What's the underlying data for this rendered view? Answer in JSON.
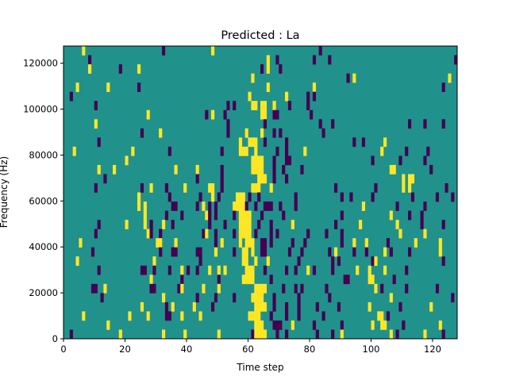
{
  "chart_data": {
    "type": "heatmap",
    "title": "Predicted : La",
    "xlabel": "Time step",
    "ylabel": "Frequency (Hz)",
    "xlim": [
      0,
      128
    ],
    "ylim": [
      0,
      127500
    ],
    "xticks": [
      "0",
      "20",
      "40",
      "60",
      "80",
      "100",
      "120"
    ],
    "xtick_values": [
      0,
      20,
      40,
      60,
      80,
      100,
      120
    ],
    "yticks": [
      "0",
      "20000",
      "40000",
      "60000",
      "80000",
      "100000",
      "120000"
    ],
    "ytick_values": [
      0,
      20000,
      40000,
      60000,
      80000,
      100000,
      120000
    ],
    "n_cols": 128,
    "n_rows": 32,
    "value_legend": {
      ".": "background (mid)",
      "p": "low",
      "y": "high"
    },
    "colors": {
      ".": "#21918c",
      "p": "#440154",
      "y": "#fde725"
    },
    "rows_top_to_bottom": [
      "......y.........................p...............y..................................p...............................................",
      "........p.........................................................y..p...........p....p........................................p...",
      "........y.........p.....y.......................................p.y...p..............................................................",
      ".............................................................y..............................p.y..............................y.......",
      "....y.........y.........p.........................................y..............y.........................................p.......",
      "..p.........................................................y...........y......p.p.....................................................",
      "..........p..........................................p.p.....yy.yy..y....p.....p.......................................................",
      "...........................y..................p.y...p...........yy..pp..........p.......................................................",
      "..........y..........................................p...........p.................p...p........................p....p.....p............",
      ".........................p.....y.....................p.....y....y...p.p.............p................................................",
      "...........p.............................................y..yyy..p......p.....................p..p......y.........................p....",
      "...y..................y...........p................p.....yyy..y......p..p.....y........................y.......p......p..........",
      "....................y........................................yyyy...p...pp..........................p........p.......p...................",
      "...........y....y...................y......y.......p.........yyyy...p..p.....p............................yy...........p...........y.",
      ".............p.............................p.......p...........yyy..p...p.....................................y.yy......................p",
      "..........p..............p..y....p.....y.......yy..p.........yyy...y....................p............p........y.y...........p.........",
      "........................y.........p.........p...y.p.....yyy.p..p...........p..............p..p......p............p.......p....p....",
      "........................y.y........pp......p.y.p.p.....yyyyp..p..ppp..p....p.....................y..........p........p...............",
      "..........................y......p....p.......yp.p.....p.yyyy...p......p..................p...............y.....p...p...................",
      "...........p........y.....y.p...y..p...........p....p....yyyy..p...p......y.............p.......y...........y.......p......p.........",
      "..........p................yp..p.............py..p.....p.yyyy.p....p.p.........p.....p....p..................y.......y..........",
      ".....y........................yy....y............p.y.....y.yyy..pp.p......p...p...........p...y...y......p........y.......y....",
      ".........p.....................p...pp......pp....y.....p..yy.y..pp.......p...p........p.y.....p...p.....y.p.....p.........y...",
      "....y........................y..............p.............yy..y...y.........p..........p.p..........py.....................p...",
      "...........p.............pp..p....p...y.p..p...y..y.y......yyy...p......p..p...y.p.....p.......y...y....y......p..........",
      "............................y.........p...........p.......yyyy.....p.......................pp......yy......p.....................p...",
      ".........pp..y..............pp.......py......y....y...........yyyy.....p...p.p.......p...............y.p.......p.........p......p..",
      "............p...................y..........p.....p.....p.....yyyy...p.......p.........p...................y...................p.",
      ".........................y.......p.y......y.....p.............yyyy..p...p...p.....p......p.........y.........p.........y..........p",
      "......y..............y.....y.....pp...y.....y...............yyyy...p....p...p.......p.................yy.p......................p",
      "..............y...............................................yyy...ppp...y......p........p.........y..yy.....p...........y....",
      "..p...............y.............y......y..........y..........pyyyy...p..p.........p....p..y...............y.p........y.....p..."
    ]
  }
}
